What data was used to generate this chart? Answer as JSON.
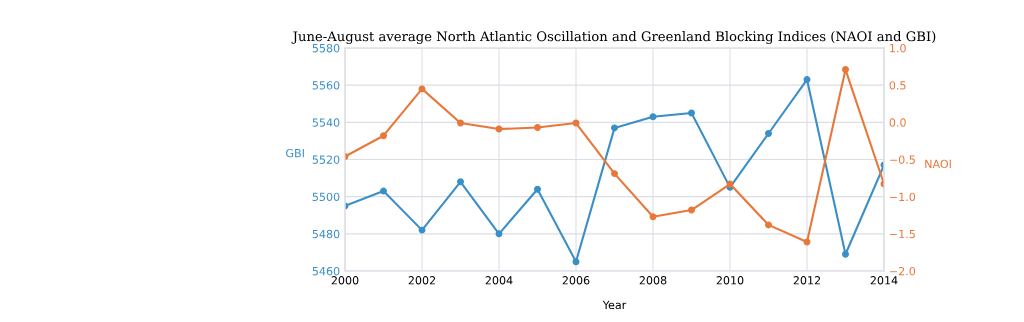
{
  "chart_data": {
    "type": "line",
    "title": "June-August average North Atlantic Oscillation and Greenland Blocking Indices (NAOI and GBI)",
    "xlabel": "Year",
    "ylabel": "GBI",
    "y2label": "NAOI",
    "x": [
      2000,
      2001,
      2002,
      2003,
      2004,
      2005,
      2006,
      2007,
      2008,
      2009,
      2010,
      2011,
      2012,
      2013,
      2014
    ],
    "xlim": [
      2000,
      2014
    ],
    "xticks": [
      2000,
      2002,
      2004,
      2006,
      2008,
      2010,
      2012,
      2014
    ],
    "ylim": [
      5460,
      5580
    ],
    "yticks": [
      5460,
      5480,
      5500,
      5520,
      5540,
      5560,
      5580
    ],
    "y2lim": [
      -2.0,
      1.0
    ],
    "y2ticks": [
      {
        "value": -2.0,
        "label": "−2.0"
      },
      {
        "value": -1.5,
        "label": "−1.5"
      },
      {
        "value": -1.0,
        "label": "−1.0"
      },
      {
        "value": -0.5,
        "label": "−0.5"
      },
      {
        "value": 0.0,
        "label": "0.0"
      },
      {
        "value": 0.5,
        "label": "0.5"
      },
      {
        "value": 1.0,
        "label": "1.0"
      }
    ],
    "grid": true,
    "marker": "circle",
    "line_style": "solid",
    "series": [
      {
        "color": "#3a8fc7",
        "values": [
          5495,
          5503,
          5482,
          5508,
          5480,
          5504,
          5465,
          5537,
          5543,
          5545,
          5505,
          5534,
          5563,
          5469,
          5517
        ]
      },
      {
        "color": "#e8773a",
        "axis": "y2",
        "values": [
          -0.46,
          -0.18,
          0.45,
          -0.01,
          -0.09,
          -0.07,
          -0.01,
          -0.69,
          -1.27,
          -1.18,
          -0.83,
          -1.38,
          -1.61,
          0.71,
          -0.83
        ]
      }
    ]
  }
}
